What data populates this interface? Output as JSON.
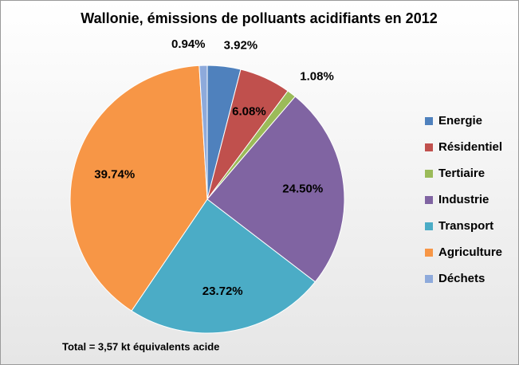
{
  "chart_data": {
    "type": "pie",
    "title": "Wallonie, émissions de polluants acidifiants en 2012",
    "categories": [
      "Energie",
      "Résidentiel",
      "Tertiaire",
      "Industrie",
      "Transport",
      "Agriculture",
      "Déchets"
    ],
    "values": [
      3.92,
      6.08,
      1.08,
      24.5,
      23.72,
      39.74,
      0.94
    ],
    "value_labels": [
      "3.92%",
      "6.08%",
      "1.08%",
      "24.50%",
      "23.72%",
      "39.74%",
      "0.94%"
    ],
    "colors": [
      "#4f81bd",
      "#c0504d",
      "#9bbb59",
      "#8064a2",
      "#4bacc6",
      "#f79646",
      "#8eaadb"
    ],
    "annotation": "Total = 3,57 kt équivalents acide",
    "legend": "right"
  }
}
